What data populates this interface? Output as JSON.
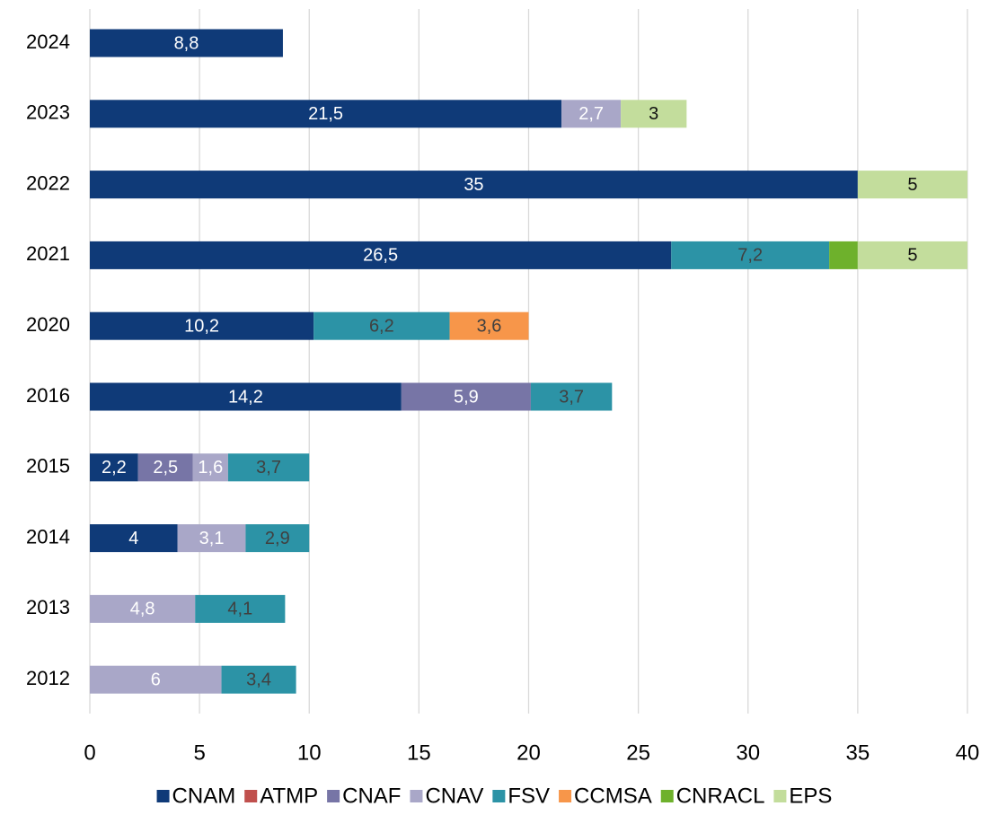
{
  "chart_data": {
    "type": "stacked_barh",
    "categories": [
      "2024",
      "2023",
      "2022",
      "2021",
      "2020",
      "2016",
      "2015",
      "2014",
      "2013",
      "2012"
    ],
    "series": [
      {
        "name": "CNAM",
        "color": "#0f3a78",
        "label_color": "#ffffff",
        "values": [
          8.8,
          21.5,
          35,
          26.5,
          10.2,
          14.2,
          2.2,
          4,
          null,
          null
        ],
        "value_labels": [
          "8,8",
          "21,5",
          "35",
          "26,5",
          "10,2",
          "14,2",
          "2,2",
          "4",
          null,
          null
        ]
      },
      {
        "name": "ATMP",
        "color": "#c0504d",
        "label_color": "#ffffff",
        "values": [
          null,
          null,
          null,
          null,
          null,
          null,
          null,
          null,
          null,
          null
        ],
        "value_labels": [
          null,
          null,
          null,
          null,
          null,
          null,
          null,
          null,
          null,
          null
        ]
      },
      {
        "name": "CNAF",
        "color": "#7775a6",
        "label_color": "#ffffff",
        "values": [
          null,
          null,
          null,
          null,
          null,
          5.9,
          2.5,
          null,
          null,
          null
        ],
        "value_labels": [
          null,
          null,
          null,
          null,
          null,
          "5,9",
          "2,5",
          null,
          null,
          null
        ]
      },
      {
        "name": "CNAV",
        "color": "#a9a7c8",
        "label_color": "#ffffff",
        "values": [
          null,
          2.7,
          null,
          null,
          null,
          null,
          1.6,
          3.1,
          4.8,
          6
        ],
        "value_labels": [
          null,
          "2,7",
          null,
          null,
          null,
          null,
          "1,6",
          "3,1",
          "4,8",
          "6"
        ]
      },
      {
        "name": "FSV",
        "color": "#2c93a6",
        "label_color": "#404040",
        "values": [
          null,
          null,
          null,
          7.2,
          6.2,
          3.7,
          3.7,
          2.9,
          4.1,
          3.4
        ],
        "value_labels": [
          null,
          null,
          null,
          "7,2",
          "6,2",
          "3,7",
          "3,7",
          "2,9",
          "4,1",
          "3,4"
        ]
      },
      {
        "name": "CCMSA",
        "color": "#f7964a",
        "label_color": "#404040",
        "values": [
          null,
          null,
          null,
          null,
          3.6,
          null,
          null,
          null,
          null,
          null
        ],
        "value_labels": [
          null,
          null,
          null,
          null,
          "3,6",
          null,
          null,
          null,
          null,
          null
        ]
      },
      {
        "name": "CNRACL",
        "color": "#6eb12c",
        "label_color": "#404040",
        "values": [
          null,
          null,
          null,
          1.3,
          null,
          null,
          null,
          null,
          null,
          null
        ],
        "value_labels": [
          null,
          null,
          null,
          null,
          null,
          null,
          null,
          null,
          null,
          null
        ]
      },
      {
        "name": "EPS",
        "color": "#c3dd9c",
        "label_color": "#111111",
        "values": [
          null,
          3,
          5,
          5,
          null,
          null,
          null,
          null,
          null,
          null
        ],
        "value_labels": [
          null,
          "3",
          "5",
          "5",
          null,
          null,
          null,
          null,
          null,
          null
        ]
      }
    ],
    "xlim": [
      0,
      40
    ],
    "xticks": [
      0,
      5,
      10,
      15,
      20,
      25,
      30,
      35,
      40
    ],
    "grid": true,
    "legend": "bottom"
  }
}
